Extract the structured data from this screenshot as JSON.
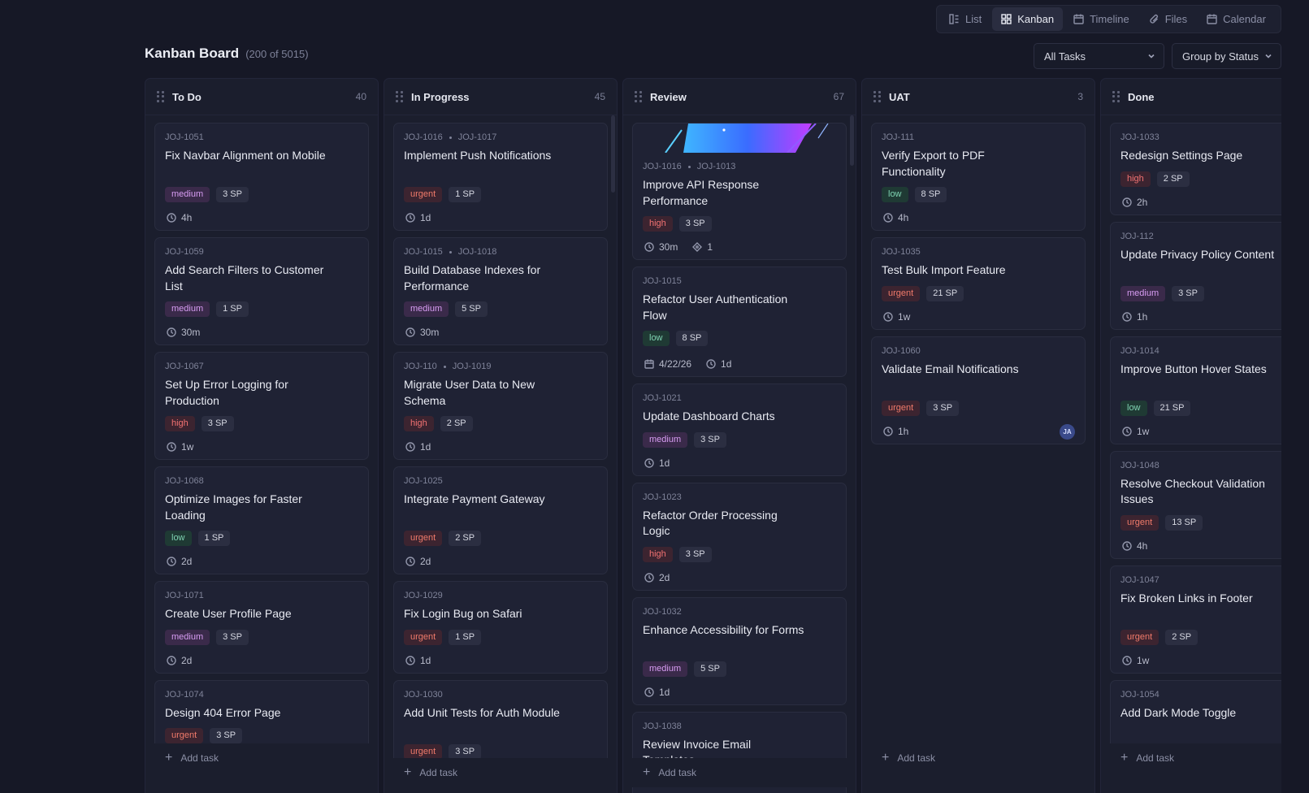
{
  "views": [
    {
      "label": "List",
      "icon": "list-icon"
    },
    {
      "label": "Kanban",
      "icon": "kanban-icon",
      "active": true
    },
    {
      "label": "Timeline",
      "icon": "calendar-icon"
    },
    {
      "label": "Files",
      "icon": "paperclip-icon"
    },
    {
      "label": "Calendar",
      "icon": "calendar-icon"
    }
  ],
  "header": {
    "title": "Kanban Board",
    "count": "(200 of 5015)"
  },
  "filters": {
    "tasks": "All Tasks",
    "group": "Group by Status"
  },
  "add_task_label": "Add task",
  "columns": [
    {
      "title": "To Do",
      "count": "40",
      "cards": [
        {
          "ids": [
            "JOJ-1051"
          ],
          "title": "Fix Navbar Alignment on Mobile",
          "priority": "medium",
          "sp": "3 SP",
          "meta": [
            {
              "icon": "clock",
              "text": "4h"
            }
          ]
        },
        {
          "ids": [
            "JOJ-1059"
          ],
          "title": "Add Search Filters to Customer List",
          "priority": "medium",
          "sp": "1 SP",
          "meta": [
            {
              "icon": "clock",
              "text": "30m"
            }
          ]
        },
        {
          "ids": [
            "JOJ-1067"
          ],
          "title": "Set Up Error Logging for Production",
          "priority": "high",
          "sp": "3 SP",
          "meta": [
            {
              "icon": "clock",
              "text": "1w"
            }
          ]
        },
        {
          "ids": [
            "JOJ-1068"
          ],
          "title": "Optimize Images for Faster Loading",
          "priority": "low",
          "sp": "1 SP",
          "meta": [
            {
              "icon": "clock",
              "text": "2d"
            }
          ]
        },
        {
          "ids": [
            "JOJ-1071"
          ],
          "title": "Create User Profile Page",
          "priority": "medium",
          "sp": "3 SP",
          "meta": [
            {
              "icon": "clock",
              "text": "2d"
            }
          ]
        },
        {
          "ids": [
            "JOJ-1074"
          ],
          "title": "Design 404 Error Page",
          "priority": "urgent",
          "sp": "3 SP",
          "meta": []
        }
      ]
    },
    {
      "title": "In Progress",
      "count": "45",
      "cards": [
        {
          "ids": [
            "JOJ-1016",
            "JOJ-1017"
          ],
          "title": "Implement Push Notifications",
          "priority": "urgent",
          "sp": "1 SP",
          "meta": [
            {
              "icon": "clock",
              "text": "1d"
            }
          ]
        },
        {
          "ids": [
            "JOJ-1015",
            "JOJ-1018"
          ],
          "title": "Build Database Indexes for Performance",
          "priority": "medium",
          "sp": "5 SP",
          "meta": [
            {
              "icon": "clock",
              "text": "30m"
            }
          ]
        },
        {
          "ids": [
            "JOJ-110",
            "JOJ-1019"
          ],
          "title": "Migrate User Data to New Schema",
          "priority": "high",
          "sp": "2 SP",
          "meta": [
            {
              "icon": "clock",
              "text": "1d"
            }
          ]
        },
        {
          "ids": [
            "JOJ-1025"
          ],
          "title": "Integrate Payment Gateway",
          "priority": "urgent",
          "sp": "2 SP",
          "meta": [
            {
              "icon": "clock",
              "text": "2d"
            }
          ]
        },
        {
          "ids": [
            "JOJ-1029"
          ],
          "title": "Fix Login Bug on Safari",
          "priority": "urgent",
          "sp": "1 SP",
          "meta": [
            {
              "icon": "clock",
              "text": "1d"
            }
          ]
        },
        {
          "ids": [
            "JOJ-1030"
          ],
          "title": "Add Unit Tests for Auth Module",
          "priority": "urgent",
          "sp": "3 SP",
          "meta": []
        }
      ]
    },
    {
      "title": "Review",
      "count": "67",
      "cards": [
        {
          "ids": [
            "JOJ-1016",
            "JOJ-1013"
          ],
          "title": "Improve API Response Performance",
          "priority": "high",
          "sp": "3 SP",
          "cover": true,
          "meta": [
            {
              "icon": "clock",
              "text": "30m"
            },
            {
              "icon": "tag",
              "text": "1"
            }
          ]
        },
        {
          "ids": [
            "JOJ-1015"
          ],
          "title": "Refactor User Authentication Flow",
          "priority": "low",
          "sp": "8 SP",
          "meta": [
            {
              "icon": "calendar",
              "text": "4/22/26"
            },
            {
              "icon": "clock",
              "text": "1d"
            }
          ]
        },
        {
          "ids": [
            "JOJ-1021"
          ],
          "title": "Update Dashboard Charts",
          "priority": "medium",
          "sp": "3 SP",
          "meta": [
            {
              "icon": "clock",
              "text": "1d"
            }
          ]
        },
        {
          "ids": [
            "JOJ-1023"
          ],
          "title": "Refactor Order Processing Logic",
          "priority": "high",
          "sp": "3 SP",
          "meta": [
            {
              "icon": "clock",
              "text": "2d"
            }
          ]
        },
        {
          "ids": [
            "JOJ-1032"
          ],
          "title": "Enhance Accessibility for Forms",
          "priority": "medium",
          "sp": "5 SP",
          "meta": [
            {
              "icon": "clock",
              "text": "1d"
            }
          ]
        },
        {
          "ids": [
            "JOJ-1038"
          ],
          "title": "Review Invoice Email Templates",
          "priority": "",
          "sp": "",
          "meta": []
        }
      ]
    },
    {
      "title": "UAT",
      "count": "3",
      "cards": [
        {
          "ids": [
            "JOJ-111"
          ],
          "title": "Verify Export to PDF Functionality",
          "priority": "low",
          "sp": "8 SP",
          "meta": [
            {
              "icon": "clock",
              "text": "4h"
            }
          ]
        },
        {
          "ids": [
            "JOJ-1035"
          ],
          "title": "Test Bulk Import Feature",
          "priority": "urgent",
          "sp": "21 SP",
          "meta": [
            {
              "icon": "clock",
              "text": "1w"
            }
          ]
        },
        {
          "ids": [
            "JOJ-1060"
          ],
          "title": "Validate Email Notifications",
          "priority": "urgent",
          "sp": "3 SP",
          "meta": [
            {
              "icon": "clock",
              "text": "1h"
            }
          ],
          "avatar": "JA"
        }
      ]
    },
    {
      "title": "Done",
      "count": "",
      "cards": [
        {
          "ids": [
            "JOJ-1033"
          ],
          "title": "Redesign Settings Page",
          "priority": "high",
          "sp": "2 SP",
          "meta": [
            {
              "icon": "clock",
              "text": "2h"
            }
          ]
        },
        {
          "ids": [
            "JOJ-112"
          ],
          "title": "Update Privacy Policy Content",
          "priority": "medium",
          "sp": "3 SP",
          "meta": [
            {
              "icon": "clock",
              "text": "1h"
            }
          ]
        },
        {
          "ids": [
            "JOJ-1014"
          ],
          "title": "Improve Button Hover States",
          "priority": "low",
          "sp": "21 SP",
          "meta": [
            {
              "icon": "clock",
              "text": "1w"
            }
          ]
        },
        {
          "ids": [
            "JOJ-1048"
          ],
          "title": "Resolve Checkout Validation Issues",
          "priority": "urgent",
          "sp": "13 SP",
          "meta": [
            {
              "icon": "clock",
              "text": "4h"
            }
          ]
        },
        {
          "ids": [
            "JOJ-1047"
          ],
          "title": "Fix Broken Links in Footer",
          "priority": "urgent",
          "sp": "2 SP",
          "meta": [
            {
              "icon": "clock",
              "text": "1w"
            }
          ]
        },
        {
          "ids": [
            "JOJ-1054"
          ],
          "title": "Add Dark Mode Toggle",
          "priority": "",
          "sp": "",
          "meta": []
        }
      ]
    }
  ]
}
